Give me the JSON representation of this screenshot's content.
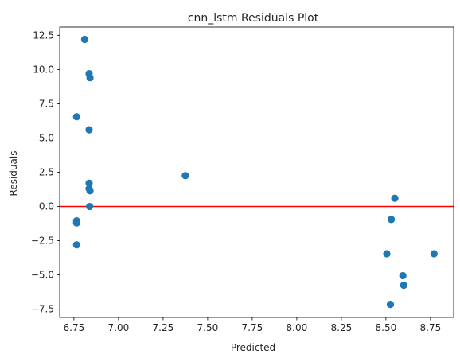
{
  "chart_data": {
    "type": "scatter",
    "title": "cnn_lstm Residuals Plot",
    "xlabel": "Predicted",
    "ylabel": "Residuals",
    "xlim": [
      6.67,
      8.88
    ],
    "ylim": [
      -8.1,
      13.1
    ],
    "xticks": [
      6.75,
      7.0,
      7.25,
      7.5,
      7.75,
      8.0,
      8.25,
      8.5,
      8.75
    ],
    "xtick_labels": [
      "6.75",
      "7.00",
      "7.25",
      "7.50",
      "7.75",
      "8.00",
      "8.25",
      "8.50",
      "8.75"
    ],
    "yticks": [
      -7.5,
      -5.0,
      -2.5,
      0.0,
      2.5,
      5.0,
      7.5,
      10.0,
      12.5
    ],
    "ytick_labels": [
      "−7.5",
      "−5.0",
      "−2.5",
      "0.0",
      "2.5",
      "5.0",
      "7.5",
      "10.0",
      "12.5"
    ],
    "grid": false,
    "marker_color": "#1f77b4",
    "reference_line": {
      "y": 0,
      "color": "#ff0000"
    },
    "points": [
      {
        "x": 6.81,
        "y": 12.2
      },
      {
        "x": 6.835,
        "y": 9.7
      },
      {
        "x": 6.84,
        "y": 9.4
      },
      {
        "x": 6.765,
        "y": 6.55
      },
      {
        "x": 6.835,
        "y": 5.6
      },
      {
        "x": 6.835,
        "y": 1.7
      },
      {
        "x": 6.835,
        "y": 1.3
      },
      {
        "x": 6.84,
        "y": 1.15
      },
      {
        "x": 6.838,
        "y": 0.0
      },
      {
        "x": 6.765,
        "y": -1.05
      },
      {
        "x": 6.765,
        "y": -1.2
      },
      {
        "x": 6.765,
        "y": -2.8
      },
      {
        "x": 7.375,
        "y": 2.25
      },
      {
        "x": 8.55,
        "y": 0.6
      },
      {
        "x": 8.53,
        "y": -0.95
      },
      {
        "x": 8.505,
        "y": -3.45
      },
      {
        "x": 8.595,
        "y": -5.05
      },
      {
        "x": 8.6,
        "y": -5.75
      },
      {
        "x": 8.525,
        "y": -7.15
      },
      {
        "x": 8.77,
        "y": -3.45
      }
    ]
  }
}
